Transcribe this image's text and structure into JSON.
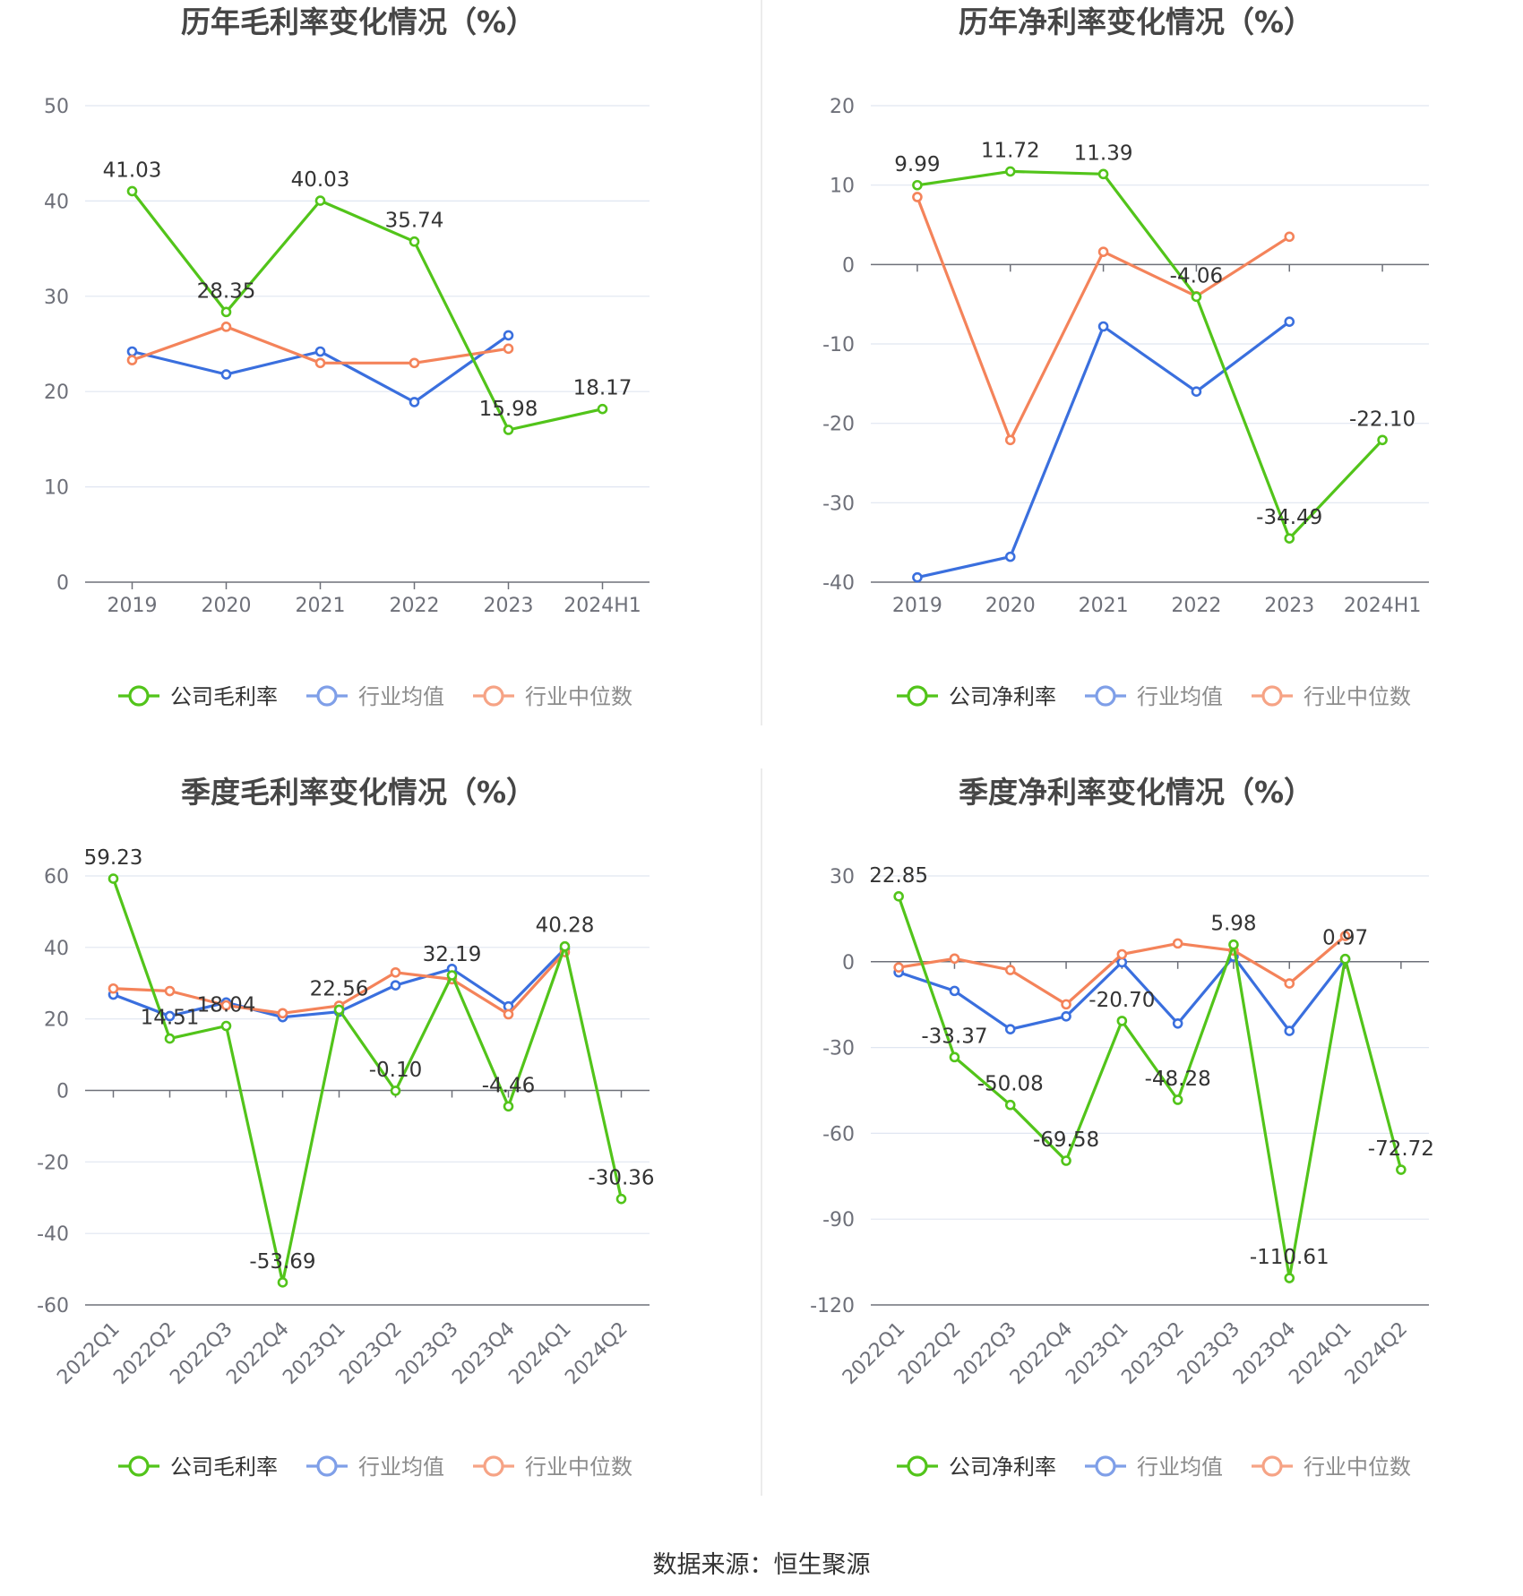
{
  "source_text": "数据来源：恒生聚源",
  "legend_labels": {
    "industry_avg": "行业均值",
    "industry_median": "行业中位数"
  },
  "colors": {
    "company": "#52c41a",
    "industry_avg": "#3a6fde",
    "industry_median": "#f4835a",
    "grid": "#e0e6f1",
    "axis": "#6e7079",
    "label": "#333333",
    "title": "#464646",
    "divider": "#e6e6e6"
  },
  "chart_data": [
    {
      "type": "line",
      "title": "历年毛利率变化情况（%）",
      "categories": [
        "2019",
        "2020",
        "2021",
        "2022",
        "2023",
        "2024H1"
      ],
      "ylim": [
        0,
        50
      ],
      "yticks": [
        0,
        10,
        20,
        30,
        40,
        50
      ],
      "series": [
        {
          "name": "公司毛利率",
          "values": [
            41.03,
            28.35,
            40.03,
            35.74,
            15.98,
            18.17
          ],
          "labels": [
            "41.03",
            "28.35",
            "40.03",
            "35.74",
            "15.98",
            "18.17"
          ]
        },
        {
          "name": "行业均值",
          "values": [
            24.2,
            21.8,
            24.2,
            18.9,
            25.9,
            null
          ]
        },
        {
          "name": "行业中位数",
          "values": [
            23.3,
            26.8,
            23.0,
            23.0,
            24.5,
            null
          ]
        }
      ],
      "legend": "bottom",
      "grid": true
    },
    {
      "type": "line",
      "title": "历年净利率变化情况（%）",
      "categories": [
        "2019",
        "2020",
        "2021",
        "2022",
        "2023",
        "2024H1"
      ],
      "ylim": [
        -40,
        20
      ],
      "yticks": [
        -40,
        -30,
        -20,
        -10,
        0,
        10,
        20
      ],
      "series": [
        {
          "name": "公司净利率",
          "values": [
            9.99,
            11.72,
            11.39,
            -4.06,
            -34.49,
            -22.1
          ],
          "labels": [
            "9.99",
            "11.72",
            "11.39",
            "-4.06",
            "-34.49",
            "-22.10"
          ]
        },
        {
          "name": "行业均值",
          "values": [
            -39.4,
            -36.8,
            -7.8,
            -16.0,
            -7.2,
            null
          ]
        },
        {
          "name": "行业中位数",
          "values": [
            8.5,
            -22.1,
            1.6,
            -4.0,
            3.5,
            null
          ]
        }
      ],
      "legend": "bottom",
      "grid": true
    },
    {
      "type": "line",
      "title": "季度毛利率变化情况（%）",
      "categories": [
        "2022Q1",
        "2022Q2",
        "2022Q3",
        "2022Q4",
        "2023Q1",
        "2023Q2",
        "2023Q3",
        "2023Q4",
        "2024Q1",
        "2024Q2"
      ],
      "ylim": [
        -60,
        60
      ],
      "yticks": [
        -60,
        -40,
        -20,
        0,
        20,
        40,
        60
      ],
      "series": [
        {
          "name": "公司毛利率",
          "values": [
            59.23,
            14.51,
            18.04,
            -53.69,
            22.56,
            -0.1,
            32.19,
            -4.46,
            40.28,
            -30.36
          ],
          "labels": [
            "59.23",
            "14.51",
            "18.04",
            "-53.69",
            "22.56",
            "-0.10",
            "32.19",
            "-4.46",
            "40.28",
            "-30.36"
          ]
        },
        {
          "name": "行业均值",
          "values": [
            26.8,
            20.8,
            24.6,
            20.5,
            22.0,
            29.4,
            34.0,
            23.5,
            39.6,
            null
          ]
        },
        {
          "name": "行业中位数",
          "values": [
            28.5,
            27.8,
            23.8,
            21.6,
            23.7,
            33.0,
            31.1,
            21.3,
            38.7,
            null
          ]
        }
      ],
      "legend": "bottom",
      "grid": true
    },
    {
      "type": "line",
      "title": "季度净利率变化情况（%）",
      "categories": [
        "2022Q1",
        "2022Q2",
        "2022Q3",
        "2022Q4",
        "2023Q1",
        "2023Q2",
        "2023Q3",
        "2023Q4",
        "2024Q1",
        "2024Q2"
      ],
      "ylim": [
        -120,
        30
      ],
      "yticks": [
        -120,
        -90,
        -60,
        -30,
        0,
        30
      ],
      "series": [
        {
          "name": "公司净利率",
          "values": [
            22.85,
            -33.37,
            -50.08,
            -69.58,
            -20.7,
            -48.28,
            5.98,
            -110.61,
            0.97,
            -72.72
          ],
          "labels": [
            "22.85",
            "-33.37",
            "-50.08",
            "-69.58",
            "-20.70",
            "-48.28",
            "5.98",
            "-110.61",
            "0.97",
            "-72.72"
          ]
        },
        {
          "name": "行业均值",
          "values": [
            -3.7,
            -10.2,
            -23.6,
            -19.1,
            -0.2,
            -21.6,
            1.8,
            -24.2,
            0.9,
            null
          ]
        },
        {
          "name": "行业中位数",
          "values": [
            -2.0,
            1.1,
            -2.9,
            -14.9,
            2.6,
            6.4,
            3.9,
            -7.6,
            9.0,
            null
          ]
        }
      ],
      "legend": "bottom",
      "grid": true
    }
  ]
}
